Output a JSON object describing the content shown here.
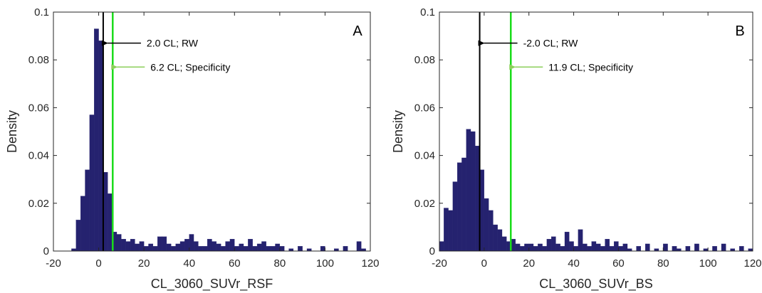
{
  "chart_data": [
    {
      "type": "bar",
      "panel_label": "A",
      "xlabel": "CL_3060_SUVr_RSF",
      "ylabel": "Density",
      "xlim": [
        -20,
        120
      ],
      "ylim": [
        0,
        0.1
      ],
      "xticks": [
        -20,
        0,
        20,
        40,
        60,
        80,
        100,
        120
      ],
      "yticks": [
        0,
        0.02,
        0.04,
        0.06,
        0.08,
        0.1
      ],
      "xtick_labels": [
        "-20",
        "0",
        "20",
        "40",
        "60",
        "80",
        "100",
        "120"
      ],
      "ytick_labels": [
        "0",
        "0.02",
        "0.04",
        "0.06",
        "0.08",
        "0.1"
      ],
      "bin_width": 2,
      "bins": [
        [
          -12,
          0.001
        ],
        [
          -10,
          0.013
        ],
        [
          -8,
          0.023
        ],
        [
          -6,
          0.034
        ],
        [
          -4,
          0.057
        ],
        [
          -2,
          0.093
        ],
        [
          0,
          0.088
        ],
        [
          2,
          0.033
        ],
        [
          4,
          0.024
        ],
        [
          6,
          0.008
        ],
        [
          8,
          0.007
        ],
        [
          10,
          0.005
        ],
        [
          12,
          0.004
        ],
        [
          14,
          0.005
        ],
        [
          16,
          0.003
        ],
        [
          18,
          0.004
        ],
        [
          20,
          0.002
        ],
        [
          22,
          0.003
        ],
        [
          24,
          0.002
        ],
        [
          26,
          0.006
        ],
        [
          28,
          0.006
        ],
        [
          30,
          0.003
        ],
        [
          32,
          0.002
        ],
        [
          34,
          0.003
        ],
        [
          36,
          0.004
        ],
        [
          38,
          0.005
        ],
        [
          40,
          0.007
        ],
        [
          42,
          0.004
        ],
        [
          44,
          0.002
        ],
        [
          46,
          0.002
        ],
        [
          48,
          0.005
        ],
        [
          50,
          0.004
        ],
        [
          52,
          0.003
        ],
        [
          54,
          0.002
        ],
        [
          56,
          0.004
        ],
        [
          58,
          0.005
        ],
        [
          60,
          0.002
        ],
        [
          62,
          0.003
        ],
        [
          64,
          0.002
        ],
        [
          66,
          0.005
        ],
        [
          68,
          0.002
        ],
        [
          70,
          0.003
        ],
        [
          72,
          0.004
        ],
        [
          74,
          0.002
        ],
        [
          76,
          0.002
        ],
        [
          78,
          0.003
        ],
        [
          80,
          0.002
        ],
        [
          84,
          0.001
        ],
        [
          88,
          0.002
        ],
        [
          92,
          0.001
        ],
        [
          98,
          0.002
        ],
        [
          104,
          0.001
        ],
        [
          108,
          0.002
        ],
        [
          114,
          0.004
        ],
        [
          116,
          0.001
        ]
      ],
      "bar_color": "#25226f",
      "annotations": [
        {
          "text": "2.0 CL; RW",
          "x_value": 2.0,
          "y_value": 0.087,
          "line_color": "#000000",
          "arrow_color": "#000000"
        },
        {
          "text": "6.2 CL; Specificity",
          "x_value": 6.2,
          "y_value": 0.077,
          "line_color": "#1adc1a",
          "arrow_color": "#8ccf5a"
        }
      ]
    },
    {
      "type": "bar",
      "panel_label": "B",
      "xlabel": "CL_3060_SUVr_BS",
      "ylabel": "Density",
      "xlim": [
        -20,
        120
      ],
      "ylim": [
        0,
        0.1
      ],
      "xticks": [
        -20,
        0,
        20,
        40,
        60,
        80,
        100,
        120
      ],
      "yticks": [
        0,
        0.02,
        0.04,
        0.06,
        0.08,
        0.1
      ],
      "xtick_labels": [
        "-20",
        "0",
        "20",
        "40",
        "60",
        "80",
        "100",
        "120"
      ],
      "ytick_labels": [
        "0",
        "0.02",
        "0.04",
        "0.06",
        "0.08",
        "0.1"
      ],
      "bin_width": 2,
      "bins": [
        [
          -20,
          0.004
        ],
        [
          -18,
          0.018
        ],
        [
          -16,
          0.017
        ],
        [
          -14,
          0.029
        ],
        [
          -12,
          0.037
        ],
        [
          -10,
          0.039
        ],
        [
          -8,
          0.051
        ],
        [
          -6,
          0.05
        ],
        [
          -4,
          0.044
        ],
        [
          -2,
          0.034
        ],
        [
          0,
          0.022
        ],
        [
          2,
          0.017
        ],
        [
          4,
          0.011
        ],
        [
          6,
          0.009
        ],
        [
          8,
          0.006
        ],
        [
          10,
          0.004
        ],
        [
          12,
          0.005
        ],
        [
          14,
          0.003
        ],
        [
          16,
          0.002
        ],
        [
          18,
          0.003
        ],
        [
          20,
          0.003
        ],
        [
          22,
          0.002
        ],
        [
          24,
          0.003
        ],
        [
          26,
          0.002
        ],
        [
          28,
          0.005
        ],
        [
          30,
          0.006
        ],
        [
          32,
          0.003
        ],
        [
          34,
          0.002
        ],
        [
          36,
          0.008
        ],
        [
          38,
          0.004
        ],
        [
          40,
          0.002
        ],
        [
          42,
          0.009
        ],
        [
          44,
          0.003
        ],
        [
          46,
          0.002
        ],
        [
          48,
          0.004
        ],
        [
          50,
          0.003
        ],
        [
          52,
          0.002
        ],
        [
          54,
          0.005
        ],
        [
          56,
          0.002
        ],
        [
          58,
          0.004
        ],
        [
          60,
          0.002
        ],
        [
          62,
          0.003
        ],
        [
          64,
          0.001
        ],
        [
          68,
          0.002
        ],
        [
          72,
          0.003
        ],
        [
          76,
          0.001
        ],
        [
          80,
          0.003
        ],
        [
          84,
          0.002
        ],
        [
          86,
          0.001
        ],
        [
          90,
          0.002
        ],
        [
          94,
          0.003
        ],
        [
          98,
          0.001
        ],
        [
          102,
          0.002
        ],
        [
          106,
          0.003
        ],
        [
          110,
          0.001
        ],
        [
          114,
          0.002
        ],
        [
          118,
          0.001
        ]
      ],
      "bar_color": "#25226f",
      "annotations": [
        {
          "text": "-2.0 CL; RW",
          "x_value": -2.0,
          "y_value": 0.087,
          "line_color": "#000000",
          "arrow_color": "#000000"
        },
        {
          "text": "11.9 CL; Specificity",
          "x_value": 11.9,
          "y_value": 0.077,
          "line_color": "#1adc1a",
          "arrow_color": "#8ccf5a"
        }
      ]
    }
  ]
}
